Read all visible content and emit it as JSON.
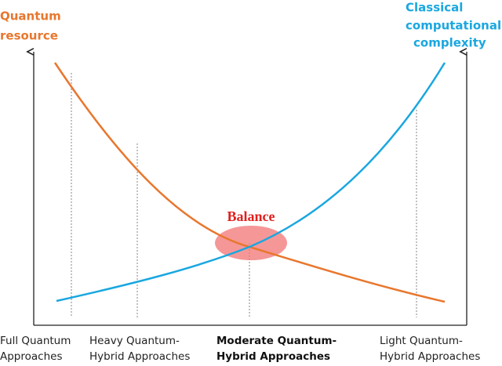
{
  "left_axis_label": [
    "Quantum",
    "resource"
  ],
  "right_axis_label": [
    "Classical",
    "computational",
    "complexity"
  ],
  "balance_label": "Balance",
  "categories": [
    [
      "Full Quantum",
      "Approaches"
    ],
    [
      "Heavy Quantum-",
      "Hybrid Approaches"
    ],
    [
      "Moderate Quantum-",
      "Hybrid Approaches"
    ],
    [
      "Light Quantum-",
      "Hybrid Approaches"
    ]
  ]
}
